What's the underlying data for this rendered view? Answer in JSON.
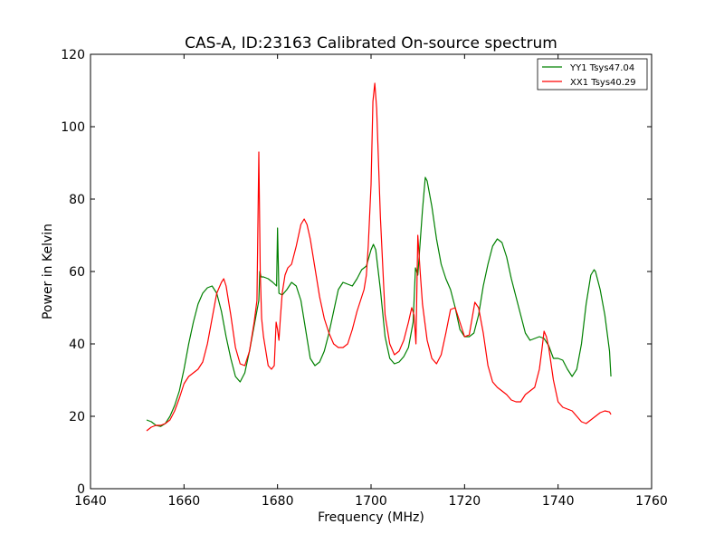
{
  "chart_data": {
    "type": "line",
    "title": "CAS-A, ID:23163 Calibrated On-source spectrum",
    "xlabel": "Frequency (MHz)",
    "ylabel": "Power in Kelvin",
    "xlim": [
      1640,
      1760
    ],
    "ylim": [
      0,
      120
    ],
    "xticks": [
      1640,
      1660,
      1680,
      1700,
      1720,
      1740,
      1760
    ],
    "yticks": [
      0,
      20,
      40,
      60,
      80,
      100,
      120
    ],
    "grid": false,
    "legend": "top-right",
    "series": [
      {
        "name": "YY1 Tsys47.04",
        "color": "#008000",
        "x": [
          1652,
          1653,
          1654,
          1655,
          1656,
          1657,
          1658,
          1659,
          1660,
          1661,
          1662,
          1663,
          1664,
          1665,
          1666,
          1667,
          1668,
          1669,
          1670,
          1671,
          1672,
          1673,
          1674,
          1675,
          1676,
          1676.2,
          1676.5,
          1677,
          1678,
          1679,
          1679.8,
          1680,
          1680.3,
          1681,
          1682,
          1683,
          1684,
          1685,
          1686,
          1687,
          1688,
          1689,
          1690,
          1691,
          1692,
          1693,
          1694,
          1695,
          1696,
          1697,
          1698,
          1699,
          1700,
          1700.5,
          1701,
          1702,
          1703,
          1704,
          1705,
          1706,
          1707,
          1708,
          1709,
          1709.5,
          1710,
          1711,
          1711.6,
          1712,
          1713,
          1714,
          1715,
          1716,
          1717,
          1718,
          1719,
          1720,
          1721,
          1722,
          1723,
          1724,
          1725,
          1726,
          1727,
          1727.5,
          1728,
          1729,
          1730,
          1731,
          1732,
          1733,
          1734,
          1735,
          1736,
          1737,
          1738,
          1739,
          1740,
          1741,
          1742,
          1743,
          1744,
          1745,
          1746,
          1747,
          1747.7,
          1748,
          1749,
          1750,
          1751,
          1751.3
        ],
        "values": [
          19,
          18.5,
          17.5,
          17.2,
          18,
          20,
          23,
          27,
          33,
          40,
          46,
          51,
          54,
          55.5,
          56,
          54,
          49,
          42,
          36,
          31,
          29.5,
          32,
          38,
          45,
          52,
          60,
          58.5,
          58.5,
          58,
          57,
          56,
          72,
          54,
          53.5,
          55,
          57,
          56,
          52,
          44,
          36,
          34,
          35,
          38,
          43,
          49,
          55,
          57,
          56.5,
          56,
          58,
          60.5,
          61.5,
          66,
          67.5,
          66,
          55,
          42,
          36,
          34.5,
          35,
          36.5,
          39,
          46,
          61,
          59,
          77,
          86,
          85,
          78,
          69,
          62,
          58,
          55,
          50,
          44,
          42,
          42,
          43,
          48,
          56,
          62,
          67,
          69,
          68.5,
          68,
          64,
          58,
          53,
          48,
          43,
          41,
          41.5,
          42,
          41.5,
          39.5,
          36,
          36,
          35.5,
          33,
          31,
          33,
          40,
          51,
          59,
          60.5,
          60,
          55,
          48,
          38,
          31
        ]
      },
      {
        "name": "XX1 Tsys40.29",
        "color": "#ff0000",
        "x": [
          1652,
          1653,
          1654,
          1655,
          1656,
          1657,
          1658,
          1659,
          1660,
          1661,
          1662,
          1663,
          1664,
          1665,
          1666,
          1667,
          1668,
          1668.5,
          1669,
          1670,
          1671,
          1672,
          1673,
          1674,
          1675,
          1675.6,
          1676,
          1676.3,
          1676.6,
          1677,
          1678,
          1678.7,
          1679.3,
          1679.7,
          1680,
          1680.3,
          1680.6,
          1681,
          1681.6,
          1682.2,
          1683,
          1684,
          1685,
          1685.7,
          1686.3,
          1687,
          1688,
          1689,
          1690,
          1691,
          1692,
          1693,
          1694,
          1695,
          1696,
          1697,
          1698,
          1698.5,
          1699,
          1699.4,
          1700,
          1700.4,
          1700.8,
          1701.2,
          1702,
          1703,
          1704,
          1705,
          1706,
          1707,
          1708,
          1708.7,
          1709.2,
          1709.6,
          1710,
          1710.5,
          1711,
          1712,
          1713,
          1714,
          1715,
          1716,
          1717,
          1718,
          1719,
          1720,
          1721,
          1721.6,
          1722.2,
          1723,
          1724,
          1725,
          1726,
          1727,
          1728,
          1729,
          1730,
          1731,
          1732,
          1733,
          1734,
          1735,
          1736,
          1736.5,
          1737,
          1737.5,
          1738,
          1739,
          1740,
          1741,
          1742,
          1743,
          1744,
          1745,
          1746,
          1747,
          1748,
          1749,
          1750,
          1751,
          1751.3
        ],
        "values": [
          16,
          17,
          17.5,
          17.5,
          18,
          19,
          21.5,
          25,
          29,
          31,
          32,
          33,
          35,
          40,
          47,
          54,
          57,
          58,
          56,
          48,
          39,
          34.5,
          34,
          38,
          46,
          52,
          93,
          60,
          47,
          42,
          34,
          33,
          34,
          46,
          44,
          41,
          47,
          54,
          59,
          61,
          62,
          67,
          73,
          74.5,
          73,
          69,
          61,
          53,
          47,
          43,
          40,
          39,
          39,
          40,
          44,
          49,
          53,
          55,
          59,
          67,
          84,
          107,
          112,
          105,
          75,
          48,
          40,
          37,
          38,
          41,
          46,
          50,
          48,
          40,
          70,
          60,
          51,
          41,
          36,
          34.5,
          37,
          43,
          49.5,
          50,
          46,
          42,
          42.5,
          47,
          51.5,
          50,
          43,
          34,
          29.5,
          28,
          27,
          26,
          24.5,
          24,
          24,
          26,
          27,
          28,
          33,
          38,
          43.5,
          42,
          39,
          30,
          24,
          22.5,
          22,
          21.5,
          20,
          18.5,
          18,
          19,
          20,
          21,
          21.5,
          21.2,
          20.5
        ]
      }
    ]
  }
}
